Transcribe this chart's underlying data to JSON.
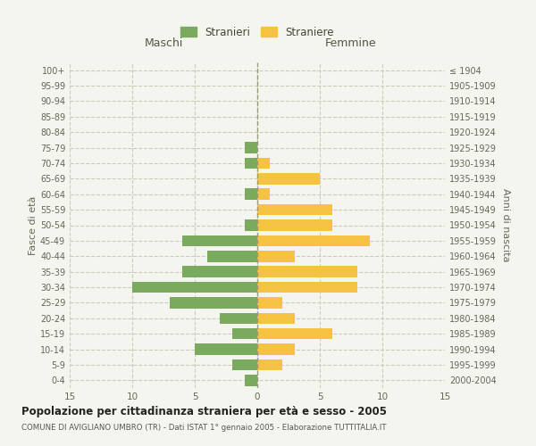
{
  "age_groups": [
    "100+",
    "95-99",
    "90-94",
    "85-89",
    "80-84",
    "75-79",
    "70-74",
    "65-69",
    "60-64",
    "55-59",
    "50-54",
    "45-49",
    "40-44",
    "35-39",
    "30-34",
    "25-29",
    "20-24",
    "15-19",
    "10-14",
    "5-9",
    "0-4"
  ],
  "birth_years": [
    "≤ 1904",
    "1905-1909",
    "1910-1914",
    "1915-1919",
    "1920-1924",
    "1925-1929",
    "1930-1934",
    "1935-1939",
    "1940-1944",
    "1945-1949",
    "1950-1954",
    "1955-1959",
    "1960-1964",
    "1965-1969",
    "1970-1974",
    "1975-1979",
    "1980-1984",
    "1985-1989",
    "1990-1994",
    "1995-1999",
    "2000-2004"
  ],
  "males": [
    0,
    0,
    0,
    0,
    0,
    1,
    1,
    0,
    1,
    0,
    1,
    6,
    4,
    6,
    10,
    7,
    3,
    2,
    5,
    2,
    1
  ],
  "females": [
    0,
    0,
    0,
    0,
    0,
    0,
    1,
    5,
    1,
    6,
    6,
    9,
    3,
    8,
    8,
    2,
    3,
    6,
    3,
    2,
    0
  ],
  "male_color": "#7aaa5e",
  "female_color": "#f5c242",
  "title": "Popolazione per cittadinanza straniera per età e sesso - 2005",
  "subtitle": "COMUNE DI AVIGLIANO UMBRO (TR) - Dati ISTAT 1° gennaio 2005 - Elaborazione TUTTITALIA.IT",
  "ylabel_left": "Fasce di età",
  "ylabel_right": "Anni di nascita",
  "xlabel_left": "Maschi",
  "xlabel_right": "Femmine",
  "legend_male": "Stranieri",
  "legend_female": "Straniere",
  "xlim": 15,
  "background_color": "#f5f5f0",
  "grid_color": "#ccccbb",
  "dashed_color": "#999977"
}
